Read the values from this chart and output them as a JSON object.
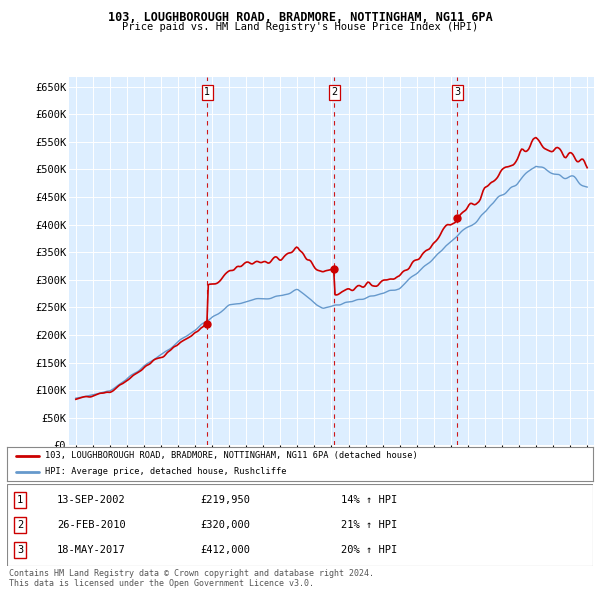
{
  "title_line1": "103, LOUGHBOROUGH ROAD, BRADMORE, NOTTINGHAM, NG11 6PA",
  "title_line2": "Price paid vs. HM Land Registry's House Price Index (HPI)",
  "ylabel_ticks": [
    "£0",
    "£50K",
    "£100K",
    "£150K",
    "£200K",
    "£250K",
    "£300K",
    "£350K",
    "£400K",
    "£450K",
    "£500K",
    "£550K",
    "£600K",
    "£650K"
  ],
  "ytick_values": [
    0,
    50000,
    100000,
    150000,
    200000,
    250000,
    300000,
    350000,
    400000,
    450000,
    500000,
    550000,
    600000,
    650000
  ],
  "sale_points": [
    {
      "year": 2002.71,
      "price": 219950,
      "label": "1"
    },
    {
      "year": 2010.15,
      "price": 320000,
      "label": "2"
    },
    {
      "year": 2017.38,
      "price": 412000,
      "label": "3"
    }
  ],
  "legend_entry1": "103, LOUGHBOROUGH ROAD, BRADMORE, NOTTINGHAM, NG11 6PA (detached house)",
  "legend_entry2": "HPI: Average price, detached house, Rushcliffe",
  "table_rows": [
    {
      "num": "1",
      "date": "13-SEP-2002",
      "price": "£219,950",
      "change": "14% ↑ HPI"
    },
    {
      "num": "2",
      "date": "26-FEB-2010",
      "price": "£320,000",
      "change": "21% ↑ HPI"
    },
    {
      "num": "3",
      "date": "18-MAY-2017",
      "price": "£412,000",
      "change": "20% ↑ HPI"
    }
  ],
  "footer_line1": "Contains HM Land Registry data © Crown copyright and database right 2024.",
  "footer_line2": "This data is licensed under the Open Government Licence v3.0.",
  "line_color_red": "#cc0000",
  "line_color_blue": "#6699cc",
  "plot_bg_color": "#ddeeff"
}
